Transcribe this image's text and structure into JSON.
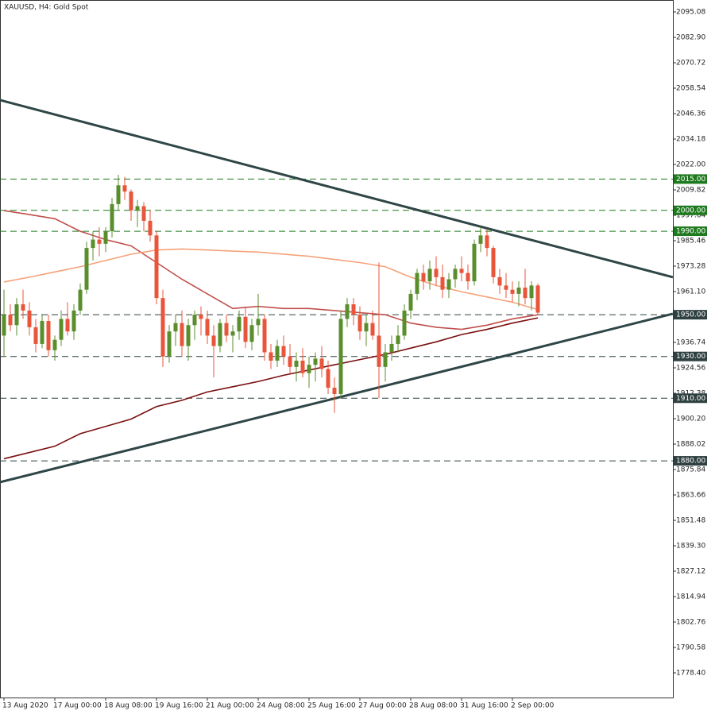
{
  "chart_data": {
    "type": "candlestick",
    "title": "XAUUSD, H4:  Gold Spot",
    "up_color": "#5a8e2c",
    "down_color": "#e8553b",
    "categories": [
      "13 Aug 2020",
      null,
      null,
      null,
      null,
      null,
      null,
      null,
      "17 Aug 00:00",
      null,
      null,
      null,
      null,
      null,
      null,
      null,
      "18 Aug 08:00",
      null,
      null,
      null,
      null,
      null,
      null,
      null,
      "19 Aug 16:00",
      null,
      null,
      null,
      null,
      null,
      null,
      null,
      "21 Aug 00:00",
      null,
      null,
      null,
      null,
      null,
      null,
      null,
      "24 Aug 08:00",
      null,
      null,
      null,
      null,
      null,
      null,
      null,
      "25 Aug 16:00",
      null,
      null,
      null,
      null,
      null,
      null,
      null,
      "27 Aug 00:00",
      null,
      null,
      null,
      null,
      null,
      null,
      null,
      "28 Aug 08:00",
      null,
      null,
      null,
      null,
      null,
      null,
      null,
      "31 Aug 16:00",
      null,
      null,
      null,
      null,
      null,
      null,
      null,
      "2 Sep 00:00",
      null,
      null,
      null,
      null
    ],
    "open": [
      1940,
      1950,
      1945,
      1955,
      1952,
      1944,
      1936,
      1947,
      1933,
      1938,
      1948,
      1942,
      1952,
      1962,
      1982,
      1986,
      1984,
      1990,
      2003,
      2012,
      2009,
      2000,
      2002,
      1995,
      1988,
      1958,
      1930,
      1942,
      1946,
      1935,
      1945,
      1950,
      1948,
      1940,
      1935,
      1946,
      1940,
      1942,
      1949,
      1937,
      1945,
      1948,
      1932,
      1928,
      1935,
      1930,
      1925,
      1928,
      1922,
      1926,
      1929,
      1924,
      1915,
      1912,
      1948,
      1955,
      1950,
      1942,
      1946,
      1940,
      1925,
      1932,
      1936,
      1940,
      1952,
      1960,
      1970,
      1966,
      1972,
      1968,
      1962,
      1967,
      1972,
      1970,
      1966,
      1984,
      1988,
      1982,
      1968,
      1964,
      1962,
      1960,
      1963,
      1958,
      1964
    ],
    "high": [
      1962,
      1955,
      1958,
      1962,
      1956,
      1948,
      1950,
      1950,
      1940,
      1952,
      1956,
      1955,
      1965,
      1985,
      1990,
      1992,
      1992,
      2006,
      2017,
      2016,
      2010,
      2005,
      2004,
      2000,
      1990,
      1962,
      1945,
      1950,
      1952,
      1948,
      1952,
      1954,
      1952,
      1945,
      1948,
      1950,
      1945,
      1952,
      1954,
      1948,
      1960,
      1950,
      1936,
      1938,
      1940,
      1936,
      1932,
      1934,
      1930,
      1932,
      1935,
      1928,
      1920,
      1952,
      1958,
      1958,
      1954,
      1950,
      1952,
      1975,
      1936,
      1940,
      1945,
      1955,
      1962,
      1972,
      1974,
      1976,
      1978,
      1974,
      1970,
      1974,
      1978,
      1974,
      1986,
      1992,
      1991,
      1983,
      1972,
      1970,
      1966,
      1966,
      1972,
      1966,
      1965
    ],
    "low": [
      1930,
      1942,
      1940,
      1948,
      1940,
      1932,
      1934,
      1930,
      1928,
      1935,
      1940,
      1938,
      1950,
      1960,
      1976,
      1978,
      1980,
      1987,
      2000,
      2005,
      1995,
      1992,
      1990,
      1985,
      1955,
      1925,
      1927,
      1935,
      1930,
      1928,
      1938,
      1940,
      1936,
      1920,
      1932,
      1937,
      1932,
      1938,
      1934,
      1933,
      1940,
      1928,
      1924,
      1925,
      1926,
      1922,
      1918,
      1920,
      1915,
      1918,
      1920,
      1912,
      1903,
      1910,
      1944,
      1945,
      1938,
      1935,
      1938,
      1910,
      1918,
      1928,
      1932,
      1938,
      1948,
      1957,
      1962,
      1962,
      1964,
      1958,
      1958,
      1963,
      1966,
      1962,
      1964,
      1980,
      1978,
      1965,
      1960,
      1958,
      1956,
      1954,
      1955,
      1952,
      1950
    ],
    "close": [
      1950,
      1945,
      1955,
      1952,
      1944,
      1936,
      1947,
      1933,
      1938,
      1948,
      1942,
      1952,
      1962,
      1982,
      1986,
      1984,
      1990,
      2003,
      2012,
      2009,
      2000,
      2002,
      1995,
      1988,
      1958,
      1930,
      1942,
      1946,
      1935,
      1945,
      1950,
      1948,
      1940,
      1935,
      1946,
      1940,
      1942,
      1949,
      1937,
      1945,
      1948,
      1932,
      1928,
      1935,
      1930,
      1925,
      1928,
      1922,
      1926,
      1929,
      1924,
      1915,
      1912,
      1948,
      1955,
      1950,
      1942,
      1946,
      1940,
      1925,
      1932,
      1936,
      1940,
      1952,
      1960,
      1970,
      1966,
      1972,
      1968,
      1962,
      1967,
      1972,
      1970,
      1966,
      1984,
      1988,
      1982,
      1968,
      1964,
      1962,
      1960,
      1963,
      1958,
      1964,
      1951
    ],
    "moving_averages": [
      {
        "color": "#c0504d",
        "x": [
          0,
          4,
          8,
          12,
          16,
          20,
          24,
          28,
          32,
          36,
          40,
          44,
          48,
          52,
          56,
          60,
          64,
          68,
          72,
          76,
          80,
          84
        ],
        "values": [
          1999.9,
          1998,
          1996,
          1990,
          1986,
          1983,
          1975,
          1967,
          1960,
          1953,
          1954,
          1953,
          1953,
          1952,
          1951,
          1950,
          1946,
          1944,
          1943,
          1945,
          1948,
          1950
        ]
      },
      {
        "color": "#f5a27a",
        "x": [
          0,
          4,
          8,
          12,
          16,
          20,
          24,
          28,
          32,
          36,
          40,
          44,
          48,
          52,
          56,
          60,
          64,
          68,
          72,
          76,
          80,
          84
        ],
        "values": [
          1965.7,
          1968,
          1970.5,
          1973,
          1976,
          1979,
          1981,
          1981.5,
          1981,
          1980.5,
          1980,
          1979,
          1978,
          1976.5,
          1975,
          1973,
          1968,
          1964,
          1961,
          1958.5,
          1956,
          1952.5
        ]
      },
      {
        "color": "#7a0f0f",
        "x": [
          0,
          4,
          8,
          12,
          16,
          20,
          24,
          28,
          32,
          36,
          40,
          44,
          48,
          52,
          56,
          60,
          64,
          68,
          72,
          76,
          80,
          84
        ],
        "values": [
          1881,
          1884,
          1887,
          1893,
          1896.5,
          1900,
          1906,
          1909,
          1913,
          1915.5,
          1918,
          1921,
          1923.5,
          1926,
          1928.5,
          1931,
          1934,
          1937,
          1940.5,
          1943,
          1946,
          1948.5
        ]
      }
    ],
    "trendlines": [
      {
        "start": 2052.83,
        "end": 1967.96,
        "color": "#2f4646"
      },
      {
        "start": 1869.77,
        "end": 1950.45,
        "color": "#2f4646"
      }
    ],
    "levels": [
      {
        "value": 2015,
        "label": "2015.00",
        "color": "#1f7a1f"
      },
      {
        "value": 2000,
        "label": "2000.00",
        "color": "#1f7a1f"
      },
      {
        "value": 1990,
        "label": "1990.00",
        "color": "#1f7a1f"
      },
      {
        "value": 1950,
        "label": "1950.00",
        "color": "#2f4040"
      },
      {
        "value": 1930,
        "label": "1930.00",
        "color": "#2f4040"
      },
      {
        "value": 1910,
        "label": "1910.00",
        "color": "#2f4040"
      },
      {
        "value": 1880,
        "label": "1880.00",
        "color": "#2f4040"
      }
    ],
    "ylim": [
      1766.6,
      2100.79
    ],
    "yticks": [
      {
        "value": 2095.08,
        "label": "2095.08"
      },
      {
        "value": 2082.9,
        "label": "2082.90"
      },
      {
        "value": 2070.72,
        "label": "2070.72"
      },
      {
        "value": 2058.54,
        "label": "2058.54"
      },
      {
        "value": 2046.36,
        "label": "2046.36"
      },
      {
        "value": 2034.18,
        "label": "2034.18"
      },
      {
        "value": 2022,
        "label": "2022.00"
      },
      {
        "value": 2009.82,
        "label": "2009.82"
      },
      {
        "value": 1997.64,
        "label": "1997.64"
      },
      {
        "value": 1985.46,
        "label": "1985.46"
      },
      {
        "value": 1973.28,
        "label": "1973.28"
      },
      {
        "value": 1961.1,
        "label": "1961.10"
      },
      {
        "value": 1948.92,
        "label": "1948.92"
      },
      {
        "value": 1936.74,
        "label": "1936.74"
      },
      {
        "value": 1924.56,
        "label": "1924.56"
      },
      {
        "value": 1912.38,
        "label": "1912.38"
      },
      {
        "value": 1900.2,
        "label": "1900.20"
      },
      {
        "value": 1888.02,
        "label": "1888.02"
      },
      {
        "value": 1875.84,
        "label": "1875.84"
      },
      {
        "value": 1863.66,
        "label": "1863.66"
      },
      {
        "value": 1851.48,
        "label": "1851.48"
      },
      {
        "value": 1839.3,
        "label": "1839.30"
      },
      {
        "value": 1827.12,
        "label": "1827.12"
      },
      {
        "value": 1814.94,
        "label": "1814.94"
      },
      {
        "value": 1802.76,
        "label": "1802.76"
      },
      {
        "value": 1790.58,
        "label": "1790.58"
      },
      {
        "value": 1778.4,
        "label": "1778.40"
      }
    ]
  }
}
